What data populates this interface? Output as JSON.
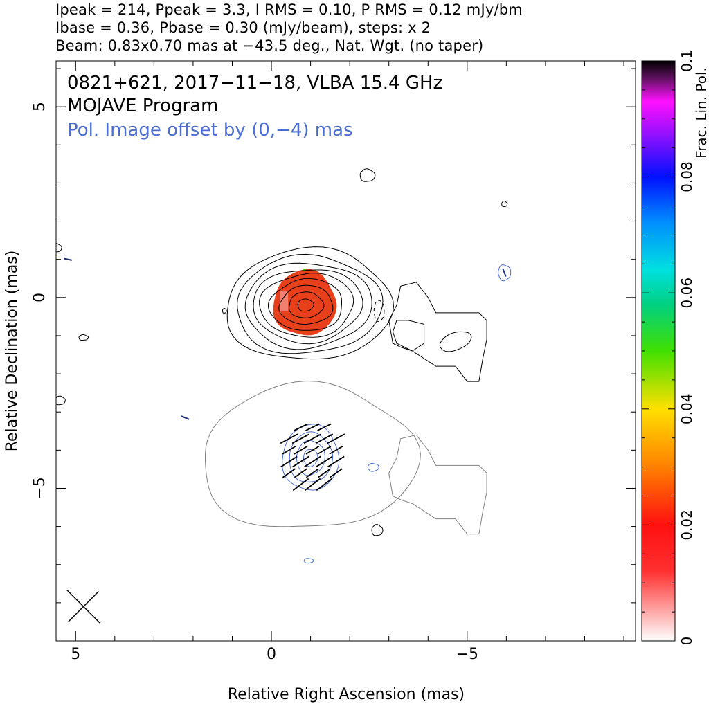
{
  "header": {
    "line1": "Ipeak = 214, Ppeak = 3.3, I RMS = 0.10, P RMS = 0.12 mJy/bm",
    "line2": "Ibase = 0.36, Pbase = 0.30 (mJy/beam), steps: x 2",
    "line3": "Beam: 0.83x0.70 mas at −43.5 deg., Nat. Wgt. (no taper)"
  },
  "chart_data": {
    "type": "heatmap",
    "title": "0821+621, 2017−11−18, VLBA 15.4 GHz",
    "subtitle": "MOJAVE Program",
    "annotation": "Pol. Image offset by (0,−4) mas",
    "xlabel": "Relative Right Ascension (mas)",
    "ylabel": "Relative Declination (mas)",
    "xlim": [
      5.5,
      -9.3
    ],
    "ylim": [
      -9.0,
      6.2
    ],
    "x_ticks": [
      5,
      0,
      -5
    ],
    "x_tick_labels": [
      "5",
      "0",
      "−5"
    ],
    "y_ticks": [
      5,
      0,
      -5
    ],
    "y_tick_labels": [
      "5",
      "0",
      "−5"
    ],
    "colorbar": {
      "label": "Frac. Lin. Pol.",
      "range": [
        0,
        0.1
      ],
      "ticks": [
        0,
        0.02,
        0.04,
        0.06,
        0.08,
        0.1
      ],
      "tick_labels": [
        "0",
        "0.02",
        "0.04",
        "0.06",
        "0.08",
        "0.1"
      ]
    },
    "beam": {
      "major_mas": 0.83,
      "minor_mas": 0.7,
      "pa_deg": -43.5,
      "center": [
        4.8,
        -8.1
      ]
    },
    "core": {
      "x": -0.85,
      "y": -0.15
    },
    "pol_offset_mas": [
      0,
      -4
    ],
    "intensity_contour_count": 9,
    "colors": {
      "contour": "#000000",
      "pol_contour": "#4a6ed6",
      "total_offset_contour": "#808080",
      "annotation": "#4a6ed6",
      "pol_fill": "#e8401a"
    }
  }
}
